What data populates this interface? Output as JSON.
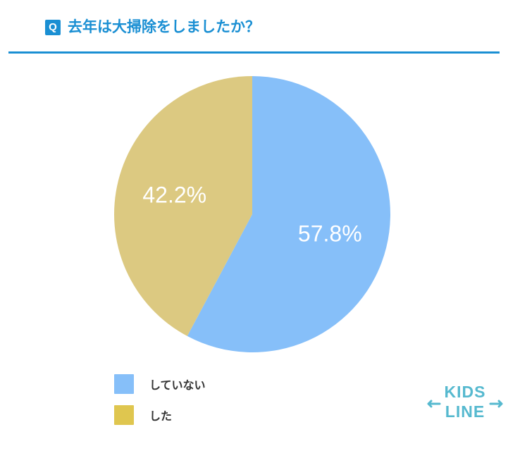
{
  "header": {
    "q_label": "Q",
    "question": "去年は大掃除をしましたか？"
  },
  "colors": {
    "accent": "#1a8fd3",
    "series_not_done": "#86bff9",
    "series_done": "#dcc981",
    "legend_done": "#dfc64f",
    "logo": "#56b9cf"
  },
  "chart_data": {
    "type": "pie",
    "title": "去年は大掃除をしましたか？",
    "slices": [
      {
        "name": "していない",
        "value": 57.8,
        "label": "57.8%",
        "color": "#86bff9"
      },
      {
        "name": "した",
        "value": 42.2,
        "label": "42.2%",
        "color": "#dcc981"
      }
    ],
    "legend_placement": "bottom-left"
  },
  "legend": [
    {
      "label": "していない",
      "color": "#86bff9"
    },
    {
      "label": "した",
      "color": "#dfc64f"
    }
  ],
  "logo": {
    "text_line1": "KIDS",
    "text_line2": "LINE"
  }
}
